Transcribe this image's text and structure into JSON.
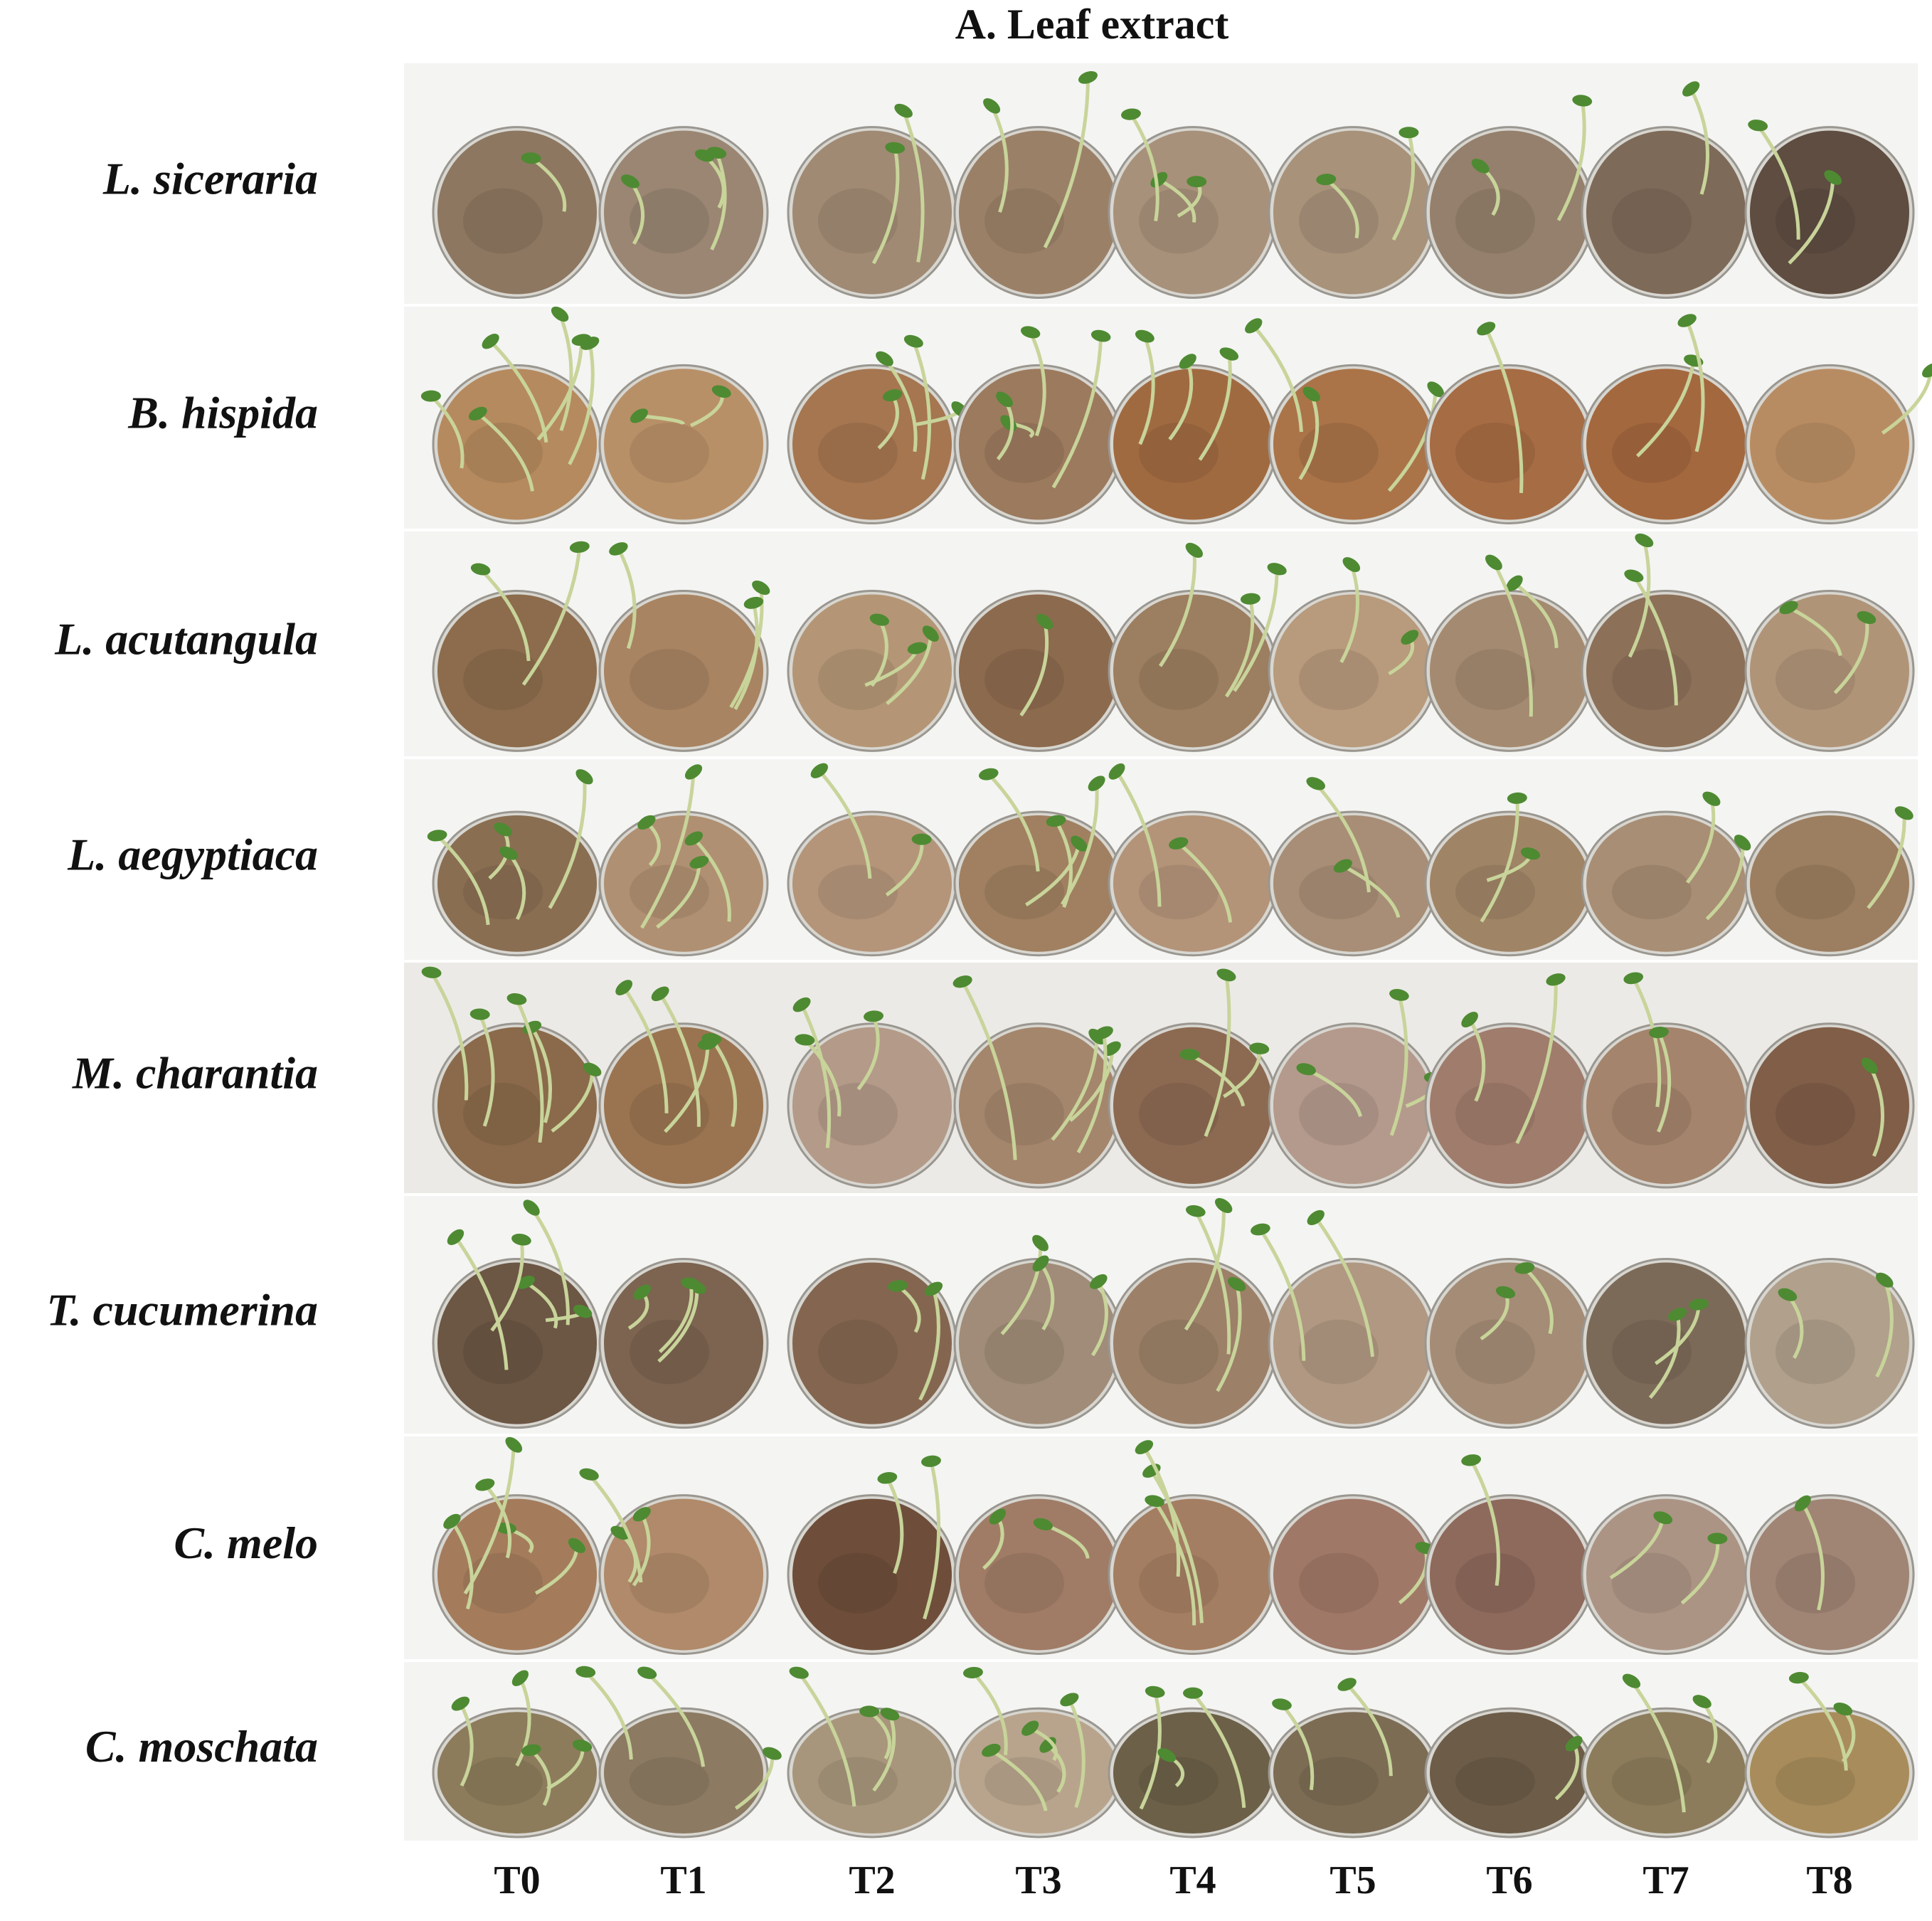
{
  "title": "A.  Leaf extract",
  "rows": [
    "L. siceraria",
    "B. hispida",
    "L. acutangula",
    "L. aegyptiaca",
    "M. charantia",
    "T. cucumerina",
    "C. melo",
    "C. moschata"
  ],
  "columns": [
    "T0",
    "T1",
    "T2",
    "T3",
    "T4",
    "T5",
    "T6",
    "T7",
    "T8"
  ]
}
